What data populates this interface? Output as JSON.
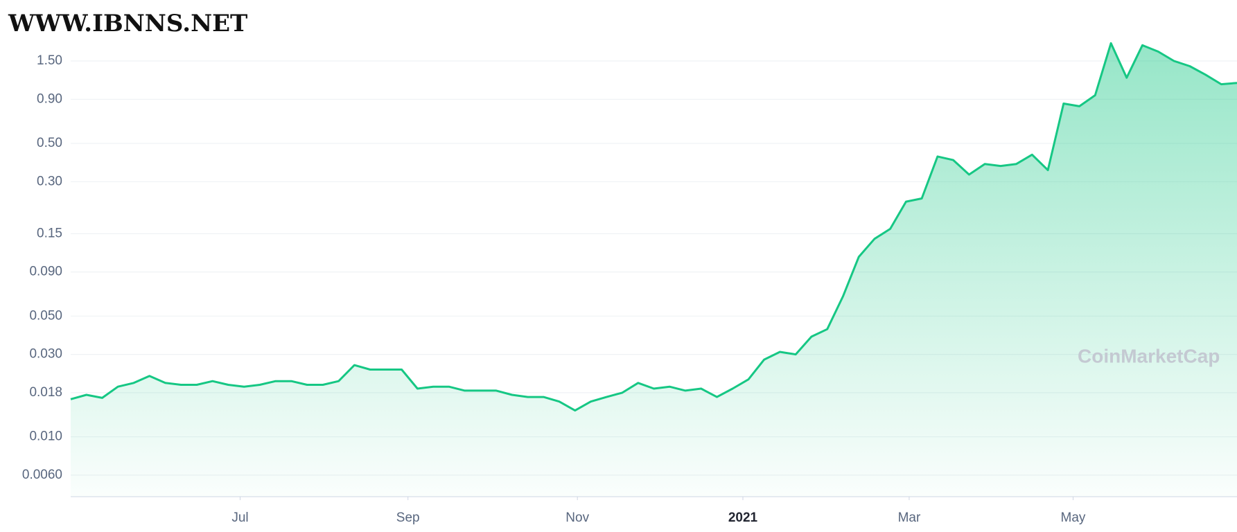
{
  "chart_data": {
    "type": "area",
    "site_watermark": "WWW.IBNNS.NET",
    "watermark": "CoinMarketCap",
    "log_scale": true,
    "grid": true,
    "color": "#16c784",
    "ylim": [
      0.0045,
      3.2
    ],
    "yticks": [
      {
        "value": 0.006,
        "label": "0.0060"
      },
      {
        "value": 0.01,
        "label": "0.010"
      },
      0.018,
      {
        "value": 0.03,
        "label": "0.030"
      },
      {
        "value": 0.05,
        "label": "0.050"
      },
      {
        "value": 0.09,
        "label": "0.090"
      },
      0.15,
      {
        "value": 0.3,
        "label": "0.30"
      },
      {
        "value": 0.5,
        "label": "0.50"
      },
      {
        "value": 0.9,
        "label": "0.90"
      },
      {
        "value": 1.5,
        "label": "1.50"
      }
    ],
    "xlim": [
      0,
      74
    ],
    "xticks": [
      {
        "value": 10.75,
        "label": "Jul"
      },
      {
        "value": 21.4,
        "label": "Sep"
      },
      {
        "value": 32.15,
        "label": "Nov"
      },
      {
        "value": 42.65,
        "label": "2021"
      },
      {
        "value": 53.2,
        "label": "Mar"
      },
      {
        "value": 63.6,
        "label": "May"
      }
    ],
    "values": [
      0.0165,
      0.0175,
      0.0168,
      0.0195,
      0.0205,
      0.0225,
      0.0205,
      0.02,
      0.02,
      0.021,
      0.02,
      0.0195,
      0.02,
      0.021,
      0.021,
      0.02,
      0.02,
      0.021,
      0.026,
      0.0245,
      0.0245,
      0.0245,
      0.019,
      0.0195,
      0.0195,
      0.0185,
      0.0185,
      0.0185,
      0.0175,
      0.017,
      0.017,
      0.016,
      0.0142,
      0.016,
      0.017,
      0.018,
      0.0205,
      0.019,
      0.0195,
      0.0185,
      0.019,
      0.017,
      0.019,
      0.0215,
      0.028,
      0.031,
      0.03,
      0.038,
      0.042,
      0.065,
      0.11,
      0.14,
      0.16,
      0.23,
      0.24,
      0.42,
      0.4,
      0.33,
      0.38,
      0.37,
      0.38,
      0.43,
      0.35,
      0.85,
      0.82,
      0.95,
      1.9,
      1.2,
      1.85,
      1.7,
      1.5,
      1.4,
      1.25,
      1.1,
      1.12
    ]
  }
}
